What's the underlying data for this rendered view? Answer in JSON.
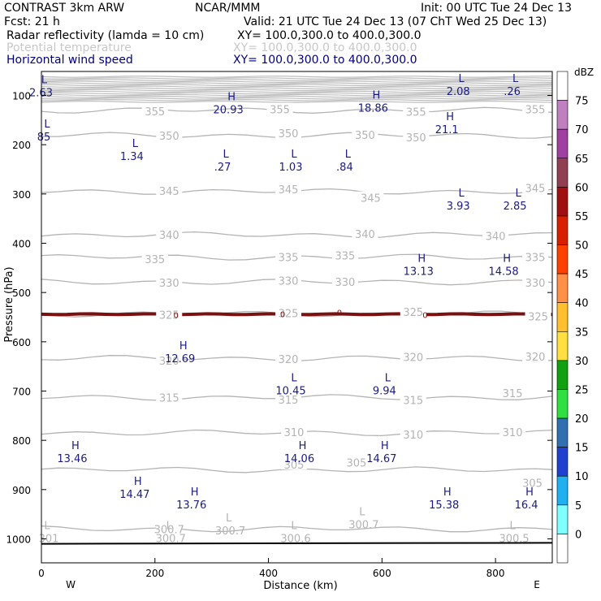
{
  "header": {
    "model": "CONTRAST   3km ARW",
    "org": "NCAR/MMM",
    "init": "Init: 00 UTC Tue 24 Dec 13",
    "fcst": "Fcst:    21 h",
    "valid": "Valid: 21 UTC Tue 24 Dec 13 (07 ChT Wed 25 Dec 13)",
    "field1_name": "Radar reflectivity (lamda = 10 cm)",
    "field1_xy": "XY= 100.0,300.0 to 400.0,300.0",
    "field2_name": "Potential temperature",
    "field2_xy": "XY= 100.0,300.0 to 400.0,300.0",
    "field3_name": "Horizontal wind speed",
    "field3_xy": "XY= 100.0,300.0 to 400.0,300.0"
  },
  "colors": {
    "field1": "#000000",
    "field2": "#c8c8c8",
    "field3": "#000080",
    "theta": "#b4b4b4",
    "wind": "#1c1c80",
    "reflectivity_band": "#7a1010"
  },
  "chart_data": {
    "type": "cross-section",
    "xlabel": "Distance (km)",
    "ylabel": "Pressure (hPa)",
    "xlim": [
      0,
      900
    ],
    "ylim": [
      1060,
      50
    ],
    "xticks": [
      0,
      200,
      400,
      600,
      800
    ],
    "yticks": [
      100,
      200,
      300,
      400,
      500,
      600,
      700,
      800,
      900,
      1000
    ],
    "west_label": "W",
    "east_label": "E",
    "theta_contours": [
      {
        "value": 355,
        "labels": [
          [
            200,
            132
          ],
          [
            420,
            128
          ],
          [
            660,
            133
          ],
          [
            870,
            128
          ]
        ]
      },
      {
        "value": 350,
        "labels": [
          [
            225,
            182
          ],
          [
            435,
            177
          ],
          [
            570,
            180
          ],
          [
            660,
            185
          ]
        ]
      },
      {
        "value": 345,
        "labels": [
          [
            225,
            294
          ],
          [
            435,
            290
          ],
          [
            580,
            308
          ],
          [
            870,
            288
          ]
        ]
      },
      {
        "value": 340,
        "labels": [
          [
            225,
            383
          ],
          [
            570,
            381
          ],
          [
            800,
            385
          ]
        ]
      },
      {
        "value": 335,
        "labels": [
          [
            200,
            432
          ],
          [
            435,
            428
          ],
          [
            535,
            425
          ],
          [
            870,
            428
          ]
        ]
      },
      {
        "value": 330,
        "labels": [
          [
            225,
            480
          ],
          [
            435,
            476
          ],
          [
            535,
            478
          ],
          [
            870,
            480
          ]
        ]
      },
      {
        "value": 325,
        "labels": [
          [
            225,
            545
          ],
          [
            435,
            542
          ],
          [
            655,
            539
          ],
          [
            875,
            548
          ]
        ]
      },
      {
        "value": 320,
        "labels": [
          [
            225,
            638
          ],
          [
            435,
            635
          ],
          [
            655,
            631
          ],
          [
            870,
            630
          ]
        ]
      },
      {
        "value": 315,
        "labels": [
          [
            225,
            713
          ],
          [
            435,
            717
          ],
          [
            655,
            718
          ],
          [
            830,
            704
          ]
        ]
      },
      {
        "value": 310,
        "labels": [
          [
            445,
            783
          ],
          [
            655,
            788
          ],
          [
            830,
            783
          ]
        ]
      },
      {
        "value": 305,
        "labels": [
          [
            445,
            849
          ],
          [
            555,
            845
          ],
          [
            865,
            886
          ]
        ]
      },
      {
        "value": 300.7,
        "labels": [
          [
            225,
            980
          ]
        ]
      }
    ],
    "wind_extrema": [
      {
        "type": "L",
        "value": "2.63",
        "x": 5,
        "p": 75
      },
      {
        "type": "H",
        "value": "20.93",
        "x": 335,
        "p": 110
      },
      {
        "type": "H",
        "value": "18.86",
        "x": 590,
        "p": 107
      },
      {
        "type": "L",
        "value": "2.08",
        "x": 740,
        "p": 73
      },
      {
        "type": "L",
        "value": ".26",
        "x": 835,
        "p": 73
      },
      {
        "type": "H",
        "value": "21.1",
        "x": 720,
        "p": 150
      },
      {
        "type": "L",
        "value": "85",
        "x": 10,
        "p": 165
      },
      {
        "type": "L",
        "value": "1.34",
        "x": 165,
        "p": 205
      },
      {
        "type": "L",
        "value": ".27",
        "x": 325,
        "p": 226
      },
      {
        "type": "L",
        "value": "1.03",
        "x": 445,
        "p": 226
      },
      {
        "type": "L",
        "value": ".84",
        "x": 540,
        "p": 226
      },
      {
        "type": "L",
        "value": "3.93",
        "x": 740,
        "p": 305
      },
      {
        "type": "L",
        "value": "2.85",
        "x": 840,
        "p": 305
      },
      {
        "type": "H",
        "value": "13.13",
        "x": 670,
        "p": 438
      },
      {
        "type": "H",
        "value": "14.58",
        "x": 820,
        "p": 438
      },
      {
        "type": "H",
        "value": "12.69",
        "x": 250,
        "p": 615
      },
      {
        "type": "L",
        "value": "10.45",
        "x": 445,
        "p": 680
      },
      {
        "type": "L",
        "value": "9.94",
        "x": 610,
        "p": 680
      },
      {
        "type": "H",
        "value": "13.46",
        "x": 60,
        "p": 818
      },
      {
        "type": "H",
        "value": "14.06",
        "x": 460,
        "p": 818
      },
      {
        "type": "H",
        "value": "14.67",
        "x": 605,
        "p": 818
      },
      {
        "type": "H",
        "value": "14.47",
        "x": 170,
        "p": 890
      },
      {
        "type": "H",
        "value": "13.76",
        "x": 270,
        "p": 912
      },
      {
        "type": "H",
        "value": "15.38",
        "x": 715,
        "p": 912
      },
      {
        "type": "H",
        "value": "16.4",
        "x": 860,
        "p": 912
      }
    ],
    "low_level_labels": [
      {
        "type": "L",
        "value": "301",
        "x": 10,
        "p": 1003
      },
      {
        "type": "L",
        "value": "300.7",
        "x": 225,
        "p": 1003
      },
      {
        "type": "L",
        "value": "300.7",
        "x": 330,
        "p": 988
      },
      {
        "type": "L",
        "value": "300.6",
        "x": 445,
        "p": 1003
      },
      {
        "type": "L",
        "value": "300.7",
        "x": 565,
        "p": 975
      },
      {
        "type": "L",
        "value": "300.5",
        "x": 830,
        "p": 1003
      }
    ],
    "reflectivity_zero_labels": [
      {
        "value": "0",
        "x": 237,
        "p": 545
      },
      {
        "value": "0",
        "x": 425,
        "p": 543
      },
      {
        "value": "0",
        "x": 525,
        "p": 540
      },
      {
        "value": "0",
        "x": 676,
        "p": 545
      }
    ],
    "colorbar": {
      "title": "dBZ",
      "levels": [
        75,
        70,
        65,
        60,
        55,
        50,
        45,
        40,
        35,
        30,
        25,
        20,
        15,
        10,
        5,
        0
      ],
      "colors": [
        "#ffffff",
        "#c080c0",
        "#a040a0",
        "#904050",
        "#a01010",
        "#d82000",
        "#ff4000",
        "#ff9048",
        "#ffc030",
        "#ffe040",
        "#10a010",
        "#30e040",
        "#3070b0",
        "#2040d0",
        "#20b0f0",
        "#80ffff",
        "#ffffff"
      ]
    }
  }
}
